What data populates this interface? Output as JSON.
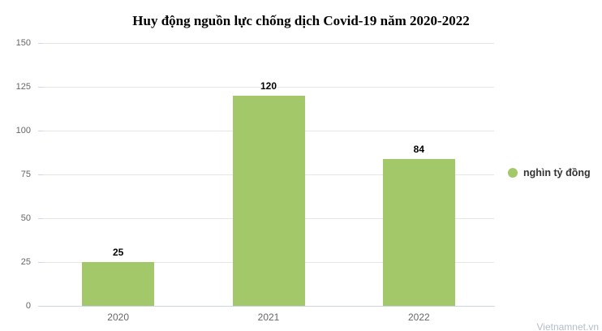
{
  "title": "Huy động nguồn lực chống dịch Covid-19 năm 2020-2022",
  "legend": {
    "label": "nghìn tỷ đồng"
  },
  "watermark": "Vietnamnet.vn",
  "colors": {
    "bar": "#a2c86a",
    "grid": "#e6e6e6",
    "axis": "#ccd6eb",
    "axis_label": "#666666",
    "legend_text": "#333333",
    "title_text": "#000000",
    "watermark_text": "#b4bcc8"
  },
  "chart_data": {
    "type": "bar",
    "categories": [
      "2020",
      "2021",
      "2022"
    ],
    "series": [
      {
        "name": "nghìn tỷ đồng",
        "values": [
          25,
          120,
          84
        ]
      }
    ],
    "data_labels": [
      25,
      120,
      84
    ],
    "title": "Huy động nguồn lực chống dịch Covid-19 năm 2020-2022",
    "xlabel": "",
    "ylabel": "",
    "ylim": [
      0,
      150
    ],
    "yticks": [
      0,
      25,
      50,
      75,
      100,
      125,
      150
    ],
    "grid": true,
    "legend_position": "middle-right"
  }
}
